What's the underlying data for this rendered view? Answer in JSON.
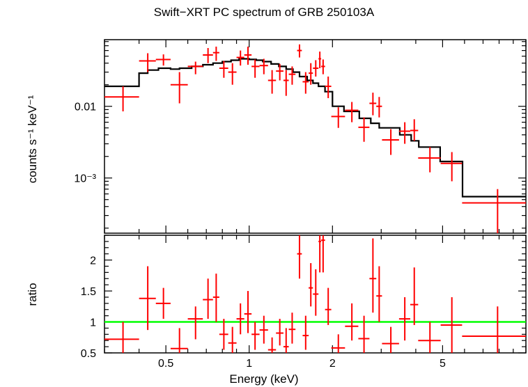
{
  "title": "Swift−XRT PC spectrum of GRB 250103A",
  "colors": {
    "data": "#ff0000",
    "model": "#000000",
    "unity": "#00ff00",
    "axes": "#000000"
  },
  "chart_data": [
    {
      "type": "scatter",
      "panel": "spectrum",
      "ylabel": "counts s⁻¹ keV⁻¹",
      "yscale": "log",
      "ylim": [
        0.00017,
        0.085
      ],
      "xscale": "log",
      "xlim": [
        0.3,
        10
      ],
      "ytick_labels": [
        "0.01",
        "10⁻³"
      ],
      "ytick_values": [
        0.01,
        0.001
      ],
      "series": [
        {
          "role": "data",
          "points": [
            {
              "x": 0.35,
              "xlo": 0.3,
              "xhi": 0.4,
              "y": 0.0135,
              "ylo": 0.0085,
              "yhi": 0.019
            },
            {
              "x": 0.43,
              "xlo": 0.4,
              "xhi": 0.46,
              "y": 0.043,
              "ylo": 0.03,
              "yhi": 0.055
            },
            {
              "x": 0.49,
              "xlo": 0.46,
              "xhi": 0.52,
              "y": 0.045,
              "ylo": 0.037,
              "yhi": 0.053
            },
            {
              "x": 0.56,
              "xlo": 0.52,
              "xhi": 0.6,
              "y": 0.02,
              "ylo": 0.011,
              "yhi": 0.03
            },
            {
              "x": 0.64,
              "xlo": 0.6,
              "xhi": 0.68,
              "y": 0.036,
              "ylo": 0.028,
              "yhi": 0.042
            },
            {
              "x": 0.71,
              "xlo": 0.68,
              "xhi": 0.74,
              "y": 0.052,
              "ylo": 0.04,
              "yhi": 0.065
            },
            {
              "x": 0.76,
              "xlo": 0.74,
              "xhi": 0.78,
              "y": 0.056,
              "ylo": 0.043,
              "yhi": 0.068
            },
            {
              "x": 0.81,
              "xlo": 0.78,
              "xhi": 0.84,
              "y": 0.034,
              "ylo": 0.025,
              "yhi": 0.043
            },
            {
              "x": 0.87,
              "xlo": 0.84,
              "xhi": 0.9,
              "y": 0.03,
              "ylo": 0.02,
              "yhi": 0.04
            },
            {
              "x": 0.93,
              "xlo": 0.9,
              "xhi": 0.96,
              "y": 0.048,
              "ylo": 0.037,
              "yhi": 0.06
            },
            {
              "x": 0.99,
              "xlo": 0.96,
              "xhi": 1.02,
              "y": 0.052,
              "ylo": 0.038,
              "yhi": 0.068
            },
            {
              "x": 1.05,
              "xlo": 1.02,
              "xhi": 1.09,
              "y": 0.036,
              "ylo": 0.025,
              "yhi": 0.045
            },
            {
              "x": 1.13,
              "xlo": 1.09,
              "xhi": 1.17,
              "y": 0.037,
              "ylo": 0.028,
              "yhi": 0.046
            },
            {
              "x": 1.21,
              "xlo": 1.17,
              "xhi": 1.25,
              "y": 0.023,
              "ylo": 0.015,
              "yhi": 0.032
            },
            {
              "x": 1.29,
              "xlo": 1.25,
              "xhi": 1.33,
              "y": 0.031,
              "ylo": 0.023,
              "yhi": 0.039
            },
            {
              "x": 1.36,
              "xlo": 1.33,
              "xhi": 1.39,
              "y": 0.023,
              "ylo": 0.014,
              "yhi": 0.032
            },
            {
              "x": 1.43,
              "xlo": 1.39,
              "xhi": 1.47,
              "y": 0.028,
              "ylo": 0.02,
              "yhi": 0.036
            },
            {
              "x": 1.52,
              "xlo": 1.49,
              "xhi": 1.55,
              "y": 0.06,
              "ylo": 0.048,
              "yhi": 0.073
            },
            {
              "x": 1.6,
              "xlo": 1.56,
              "xhi": 1.64,
              "y": 0.022,
              "ylo": 0.015,
              "yhi": 0.03
            },
            {
              "x": 1.67,
              "xlo": 1.64,
              "xhi": 1.7,
              "y": 0.029,
              "ylo": 0.02,
              "yhi": 0.04
            },
            {
              "x": 1.74,
              "xlo": 1.7,
              "xhi": 1.78,
              "y": 0.034,
              "ylo": 0.026,
              "yhi": 0.044
            },
            {
              "x": 1.8,
              "xlo": 1.78,
              "xhi": 1.82,
              "y": 0.046,
              "ylo": 0.034,
              "yhi": 0.058
            },
            {
              "x": 1.85,
              "xlo": 1.82,
              "xhi": 1.88,
              "y": 0.036,
              "ylo": 0.028,
              "yhi": 0.045
            },
            {
              "x": 1.93,
              "xlo": 1.88,
              "xhi": 1.98,
              "y": 0.019,
              "ylo": 0.013,
              "yhi": 0.026
            },
            {
              "x": 2.1,
              "xlo": 1.98,
              "xhi": 2.22,
              "y": 0.0072,
              "ylo": 0.005,
              "yhi": 0.0097
            },
            {
              "x": 2.35,
              "xlo": 2.22,
              "xhi": 2.48,
              "y": 0.0088,
              "ylo": 0.006,
              "yhi": 0.0115
            },
            {
              "x": 2.6,
              "xlo": 2.48,
              "xhi": 2.72,
              "y": 0.0051,
              "ylo": 0.0032,
              "yhi": 0.007
            },
            {
              "x": 2.8,
              "xlo": 2.72,
              "xhi": 2.88,
              "y": 0.011,
              "ylo": 0.0075,
              "yhi": 0.0155
            },
            {
              "x": 2.95,
              "xlo": 2.88,
              "xhi": 3.02,
              "y": 0.01,
              "ylo": 0.007,
              "yhi": 0.0135
            },
            {
              "x": 3.25,
              "xlo": 3.02,
              "xhi": 3.48,
              "y": 0.0034,
              "ylo": 0.0021,
              "yhi": 0.0048
            },
            {
              "x": 3.65,
              "xlo": 3.48,
              "xhi": 3.82,
              "y": 0.0045,
              "ylo": 0.003,
              "yhi": 0.006
            },
            {
              "x": 3.95,
              "xlo": 3.82,
              "xhi": 4.08,
              "y": 0.0046,
              "ylo": 0.0033,
              "yhi": 0.0066
            },
            {
              "x": 4.5,
              "xlo": 4.08,
              "xhi": 4.92,
              "y": 0.0019,
              "ylo": 0.0012,
              "yhi": 0.0027
            },
            {
              "x": 5.4,
              "xlo": 4.92,
              "xhi": 5.88,
              "y": 0.0016,
              "ylo": 0.0009,
              "yhi": 0.0023
            },
            {
              "x": 7.9,
              "xlo": 5.88,
              "xhi": 10.0,
              "y": 0.00045,
              "ylo": 0.00017,
              "yhi": 0.0007
            }
          ]
        },
        {
          "role": "model",
          "steps": [
            {
              "xlo": 0.3,
              "xhi": 0.4,
              "y": 0.019
            },
            {
              "xlo": 0.4,
              "xhi": 0.43,
              "y": 0.029
            },
            {
              "xlo": 0.43,
              "xhi": 0.47,
              "y": 0.032
            },
            {
              "xlo": 0.47,
              "xhi": 0.52,
              "y": 0.034
            },
            {
              "xlo": 0.52,
              "xhi": 0.56,
              "y": 0.033
            },
            {
              "xlo": 0.56,
              "xhi": 0.62,
              "y": 0.034
            },
            {
              "xlo": 0.62,
              "xhi": 0.68,
              "y": 0.036
            },
            {
              "xlo": 0.68,
              "xhi": 0.74,
              "y": 0.038
            },
            {
              "xlo": 0.74,
              "xhi": 0.8,
              "y": 0.04
            },
            {
              "xlo": 0.8,
              "xhi": 0.86,
              "y": 0.042
            },
            {
              "xlo": 0.86,
              "xhi": 0.92,
              "y": 0.044
            },
            {
              "xlo": 0.92,
              "xhi": 1.0,
              "y": 0.046
            },
            {
              "xlo": 1.0,
              "xhi": 1.06,
              "y": 0.045
            },
            {
              "xlo": 1.06,
              "xhi": 1.12,
              "y": 0.044
            },
            {
              "xlo": 1.12,
              "xhi": 1.2,
              "y": 0.042
            },
            {
              "xlo": 1.2,
              "xhi": 1.28,
              "y": 0.039
            },
            {
              "xlo": 1.28,
              "xhi": 1.36,
              "y": 0.036
            },
            {
              "xlo": 1.36,
              "xhi": 1.44,
              "y": 0.033
            },
            {
              "xlo": 1.44,
              "xhi": 1.52,
              "y": 0.03
            },
            {
              "xlo": 1.52,
              "xhi": 1.62,
              "y": 0.026
            },
            {
              "xlo": 1.62,
              "xhi": 1.7,
              "y": 0.023
            },
            {
              "xlo": 1.7,
              "xhi": 1.78,
              "y": 0.021
            },
            {
              "xlo": 1.78,
              "xhi": 1.88,
              "y": 0.019
            },
            {
              "xlo": 1.88,
              "xhi": 2.0,
              "y": 0.016
            },
            {
              "xlo": 2.0,
              "xhi": 2.2,
              "y": 0.01
            },
            {
              "xlo": 2.2,
              "xhi": 2.5,
              "y": 0.0085
            },
            {
              "xlo": 2.5,
              "xhi": 2.75,
              "y": 0.0068
            },
            {
              "xlo": 2.75,
              "xhi": 2.95,
              "y": 0.0058
            },
            {
              "xlo": 2.95,
              "xhi": 3.5,
              "y": 0.005
            },
            {
              "xlo": 3.5,
              "xhi": 3.85,
              "y": 0.004
            },
            {
              "xlo": 3.85,
              "xhi": 4.1,
              "y": 0.0033
            },
            {
              "xlo": 4.1,
              "xhi": 4.9,
              "y": 0.0027
            },
            {
              "xlo": 4.9,
              "xhi": 5.9,
              "y": 0.0017
            },
            {
              "xlo": 5.9,
              "xhi": 10.0,
              "y": 0.00055
            }
          ]
        }
      ]
    },
    {
      "type": "scatter",
      "panel": "ratio",
      "ylabel": "ratio",
      "yscale": "linear",
      "ylim": [
        0.5,
        2.4
      ],
      "xlabel": "Energy (keV)",
      "xscale": "log",
      "xlim": [
        0.3,
        10
      ],
      "xtick_labels": [
        "0.5",
        "1",
        "2",
        "5"
      ],
      "xtick_values": [
        0.5,
        1,
        2,
        5
      ],
      "ytick_labels": [
        "0.5",
        "1",
        "1.5",
        "2"
      ],
      "ytick_values": [
        0.5,
        1,
        1.5,
        2
      ],
      "reference_line": 1,
      "series": [
        {
          "role": "ratio",
          "points": [
            {
              "x": 0.35,
              "xlo": 0.3,
              "xhi": 0.4,
              "y": 0.72,
              "ylo": 0.45,
              "yhi": 1.0
            },
            {
              "x": 0.43,
              "xlo": 0.4,
              "xhi": 0.46,
              "y": 1.38,
              "ylo": 0.87,
              "yhi": 1.9
            },
            {
              "x": 0.49,
              "xlo": 0.46,
              "xhi": 0.52,
              "y": 1.3,
              "ylo": 1.05,
              "yhi": 1.55
            },
            {
              "x": 0.56,
              "xlo": 0.52,
              "xhi": 0.6,
              "y": 0.57,
              "ylo": 0.35,
              "yhi": 0.9
            },
            {
              "x": 0.64,
              "xlo": 0.6,
              "xhi": 0.68,
              "y": 1.05,
              "ylo": 0.72,
              "yhi": 1.25
            },
            {
              "x": 0.71,
              "xlo": 0.68,
              "xhi": 0.74,
              "y": 1.36,
              "ylo": 1.05,
              "yhi": 1.7
            },
            {
              "x": 0.76,
              "xlo": 0.74,
              "xhi": 0.78,
              "y": 1.4,
              "ylo": 1.0,
              "yhi": 1.78
            },
            {
              "x": 0.81,
              "xlo": 0.78,
              "xhi": 0.84,
              "y": 0.8,
              "ylo": 0.55,
              "yhi": 1.05
            },
            {
              "x": 0.87,
              "xlo": 0.84,
              "xhi": 0.9,
              "y": 0.66,
              "ylo": 0.45,
              "yhi": 0.92
            },
            {
              "x": 0.93,
              "xlo": 0.9,
              "xhi": 0.96,
              "y": 1.05,
              "ylo": 0.8,
              "yhi": 1.3
            },
            {
              "x": 0.99,
              "xlo": 0.96,
              "xhi": 1.02,
              "y": 1.13,
              "ylo": 0.82,
              "yhi": 1.5
            },
            {
              "x": 1.05,
              "xlo": 1.02,
              "xhi": 1.09,
              "y": 0.8,
              "ylo": 0.55,
              "yhi": 1.0
            },
            {
              "x": 1.13,
              "xlo": 1.09,
              "xhi": 1.17,
              "y": 0.87,
              "ylo": 0.65,
              "yhi": 1.1
            },
            {
              "x": 1.21,
              "xlo": 1.17,
              "xhi": 1.25,
              "y": 0.55,
              "ylo": 0.35,
              "yhi": 0.75
            },
            {
              "x": 1.29,
              "xlo": 1.25,
              "xhi": 1.33,
              "y": 0.82,
              "ylo": 0.62,
              "yhi": 1.05
            },
            {
              "x": 1.36,
              "xlo": 1.33,
              "xhi": 1.39,
              "y": 0.6,
              "ylo": 0.4,
              "yhi": 0.9
            },
            {
              "x": 1.43,
              "xlo": 1.39,
              "xhi": 1.47,
              "y": 0.88,
              "ylo": 0.65,
              "yhi": 1.15
            },
            {
              "x": 1.52,
              "xlo": 1.49,
              "xhi": 1.55,
              "y": 2.1,
              "ylo": 1.7,
              "yhi": 2.5
            },
            {
              "x": 1.6,
              "xlo": 1.56,
              "xhi": 1.64,
              "y": 0.78,
              "ylo": 0.55,
              "yhi": 1.1
            },
            {
              "x": 1.67,
              "xlo": 1.64,
              "xhi": 1.7,
              "y": 1.55,
              "ylo": 1.25,
              "yhi": 1.95
            },
            {
              "x": 1.74,
              "xlo": 1.7,
              "xhi": 1.78,
              "y": 1.45,
              "ylo": 1.1,
              "yhi": 1.85
            },
            {
              "x": 1.8,
              "xlo": 1.78,
              "xhi": 1.82,
              "y": 2.3,
              "ylo": 1.8,
              "yhi": 2.5
            },
            {
              "x": 1.85,
              "xlo": 1.82,
              "xhi": 1.88,
              "y": 2.32,
              "ylo": 1.8,
              "yhi": 2.5
            },
            {
              "x": 1.93,
              "xlo": 1.88,
              "xhi": 1.98,
              "y": 1.2,
              "ylo": 0.95,
              "yhi": 1.55
            },
            {
              "x": 2.1,
              "xlo": 1.98,
              "xhi": 2.22,
              "y": 0.58,
              "ylo": 0.4,
              "yhi": 0.8
            },
            {
              "x": 2.35,
              "xlo": 2.22,
              "xhi": 2.48,
              "y": 0.93,
              "ylo": 0.7,
              "yhi": 1.3
            },
            {
              "x": 2.6,
              "xlo": 2.48,
              "xhi": 2.72,
              "y": 0.73,
              "ylo": 0.45,
              "yhi": 1.1
            },
            {
              "x": 2.8,
              "xlo": 2.72,
              "xhi": 2.88,
              "y": 1.7,
              "ylo": 1.15,
              "yhi": 2.35
            },
            {
              "x": 2.95,
              "xlo": 2.88,
              "xhi": 3.02,
              "y": 1.42,
              "ylo": 1.0,
              "yhi": 1.9
            },
            {
              "x": 3.25,
              "xlo": 3.02,
              "xhi": 3.48,
              "y": 0.65,
              "ylo": 0.42,
              "yhi": 0.92
            },
            {
              "x": 3.65,
              "xlo": 3.48,
              "xhi": 3.82,
              "y": 1.05,
              "ylo": 0.7,
              "yhi": 1.4
            },
            {
              "x": 3.95,
              "xlo": 3.82,
              "xhi": 4.08,
              "y": 1.28,
              "ylo": 0.95,
              "yhi": 1.88
            },
            {
              "x": 4.5,
              "xlo": 4.08,
              "xhi": 4.92,
              "y": 0.7,
              "ylo": 0.45,
              "yhi": 1.0
            },
            {
              "x": 5.4,
              "xlo": 4.92,
              "xhi": 5.88,
              "y": 0.95,
              "ylo": 0.5,
              "yhi": 1.4
            },
            {
              "x": 7.9,
              "xlo": 5.88,
              "xhi": 10.0,
              "y": 0.77,
              "ylo": 0.3,
              "yhi": 1.25
            }
          ]
        }
      ]
    }
  ]
}
